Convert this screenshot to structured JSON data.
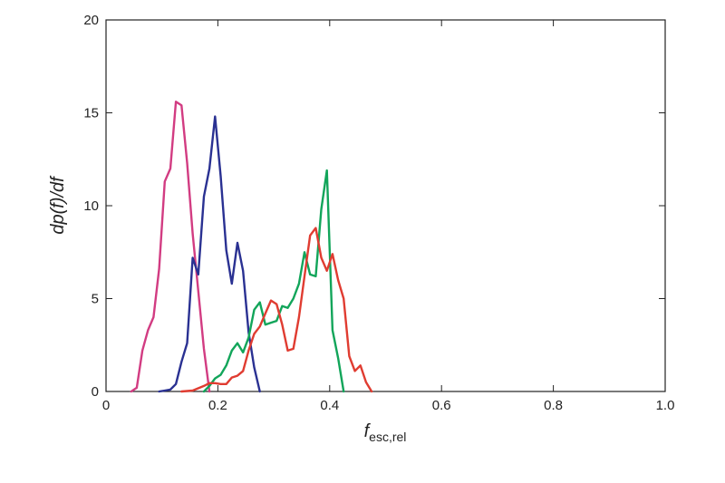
{
  "chart_data": {
    "type": "line",
    "title": "",
    "xlabel": {
      "main": "f",
      "sub": "esc,rel"
    },
    "ylabel": "dp(f)/df",
    "xlim": [
      0,
      1.0
    ],
    "ylim": [
      0,
      20
    ],
    "x_ticks": [
      0,
      0.2,
      0.4,
      0.6,
      0.8,
      1.0
    ],
    "x_tick_labels": [
      "0",
      "0.2",
      "0.4",
      "0.6",
      "0.8",
      "1.0"
    ],
    "y_ticks": [
      0,
      5,
      10,
      15,
      20
    ],
    "y_tick_labels": [
      "0",
      "5",
      "10",
      "15",
      "20"
    ],
    "grid": false,
    "legend": "none",
    "series": [
      {
        "color": "#d23c82",
        "x": [
          0.045,
          0.055,
          0.065,
          0.075,
          0.085,
          0.095,
          0.105,
          0.115,
          0.125,
          0.135,
          0.145,
          0.155,
          0.165,
          0.175,
          0.185
        ],
        "y": [
          0,
          0.2,
          2.2,
          3.3,
          4.0,
          6.6,
          11.3,
          12.0,
          15.6,
          15.4,
          12.3,
          8.5,
          5.4,
          2.3,
          0
        ]
      },
      {
        "color": "#2a3192",
        "x": [
          0.095,
          0.105,
          0.115,
          0.125,
          0.135,
          0.145,
          0.155,
          0.165,
          0.175,
          0.185,
          0.195,
          0.205,
          0.215,
          0.225,
          0.235,
          0.245,
          0.255,
          0.265,
          0.275
        ],
        "y": [
          0,
          0.05,
          0.1,
          0.4,
          1.6,
          2.6,
          7.2,
          6.3,
          10.5,
          12.0,
          14.8,
          11.6,
          7.6,
          5.8,
          8.0,
          6.5,
          3.2,
          1.3,
          0
        ]
      },
      {
        "color": "#12a55a",
        "x": [
          0.175,
          0.185,
          0.195,
          0.205,
          0.215,
          0.225,
          0.235,
          0.245,
          0.255,
          0.265,
          0.275,
          0.285,
          0.295,
          0.305,
          0.315,
          0.325,
          0.335,
          0.345,
          0.355,
          0.365,
          0.375,
          0.385,
          0.395,
          0.405,
          0.415,
          0.425
        ],
        "y": [
          0,
          0.3,
          0.7,
          0.9,
          1.4,
          2.2,
          2.6,
          2.1,
          2.9,
          4.4,
          4.8,
          3.6,
          3.7,
          3.8,
          4.6,
          4.5,
          5.0,
          5.8,
          7.5,
          6.3,
          6.2,
          9.8,
          11.9,
          3.3,
          1.8,
          0
        ]
      },
      {
        "color": "#e03c31",
        "x": [
          0.135,
          0.155,
          0.175,
          0.185,
          0.195,
          0.205,
          0.215,
          0.225,
          0.235,
          0.245,
          0.255,
          0.265,
          0.275,
          0.285,
          0.295,
          0.305,
          0.315,
          0.325,
          0.335,
          0.345,
          0.355,
          0.365,
          0.375,
          0.385,
          0.395,
          0.405,
          0.415,
          0.425,
          0.435,
          0.445,
          0.455,
          0.465,
          0.475
        ],
        "y": [
          0,
          0.05,
          0.3,
          0.45,
          0.45,
          0.4,
          0.4,
          0.75,
          0.85,
          1.1,
          2.2,
          3.1,
          3.5,
          4.2,
          4.9,
          4.7,
          3.6,
          2.2,
          2.3,
          4.0,
          6.2,
          8.4,
          8.8,
          7.2,
          6.5,
          7.4,
          6.0,
          5.0,
          1.9,
          1.1,
          1.4,
          0.5,
          0
        ]
      }
    ]
  }
}
